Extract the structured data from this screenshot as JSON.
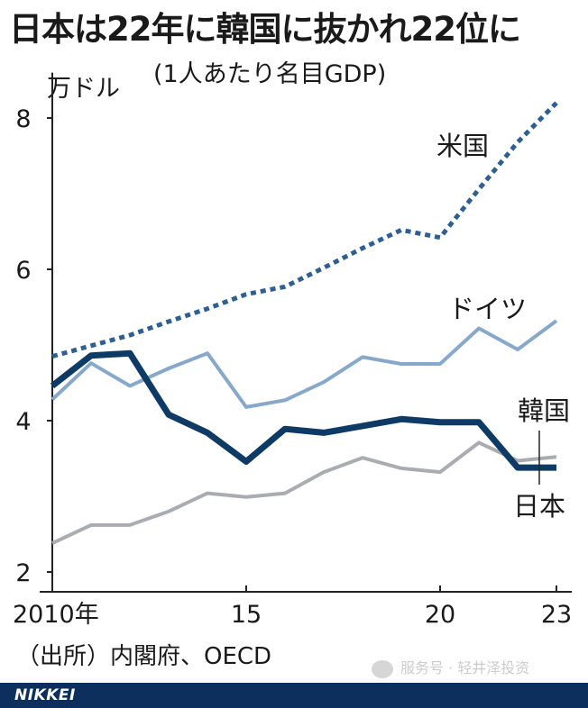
{
  "title": "日本は22年に韓国に抜かれ22位に",
  "subtitle": "(1人あたり名目GDP)",
  "source": "（出所）内閣府、OECD",
  "brand": "NIKKEI",
  "watermark": "服务号 · 轻井泽投资",
  "colors": {
    "usa": "#2d5f93",
    "germany": "#86a9cb",
    "japan": "#0e3a66",
    "korea": "#a9adb2",
    "axis": "#222222",
    "footer": "#0c2f5e"
  },
  "chart_data": {
    "type": "line",
    "ylabel": "万ドル",
    "ylim": [
      2,
      8.6
    ],
    "xlim": [
      2010,
      2023
    ],
    "yticks": [
      2,
      4,
      6,
      8
    ],
    "xticks": [
      {
        "value": 2010,
        "label": "2010年"
      },
      {
        "value": 2015,
        "label": "15"
      },
      {
        "value": 2020,
        "label": "20"
      },
      {
        "value": 2023,
        "label": "23"
      }
    ],
    "x": [
      2010,
      2011,
      2012,
      2013,
      2014,
      2015,
      2016,
      2017,
      2018,
      2019,
      2020,
      2021,
      2022,
      2023
    ],
    "series": [
      {
        "name": "米国",
        "style": "dotted",
        "values": [
          4.85,
          4.99,
          5.13,
          5.31,
          5.48,
          5.67,
          5.77,
          6.02,
          6.28,
          6.52,
          6.42,
          7.06,
          7.68,
          8.2
        ]
      },
      {
        "name": "ドイツ",
        "style": "solid",
        "values": [
          4.28,
          4.76,
          4.46,
          4.69,
          4.89,
          4.18,
          4.27,
          4.51,
          4.84,
          4.75,
          4.75,
          5.22,
          4.94,
          5.32
        ]
      },
      {
        "name": "日本",
        "style": "bold",
        "values": [
          4.46,
          4.86,
          4.89,
          4.08,
          3.84,
          3.46,
          3.89,
          3.84,
          3.93,
          4.02,
          3.98,
          3.98,
          3.38,
          3.38
        ]
      },
      {
        "name": "韓国",
        "style": "solid",
        "values": [
          2.38,
          2.62,
          2.62,
          2.8,
          3.04,
          2.99,
          3.04,
          3.32,
          3.51,
          3.37,
          3.32,
          3.71,
          3.47,
          3.52
        ]
      }
    ]
  }
}
